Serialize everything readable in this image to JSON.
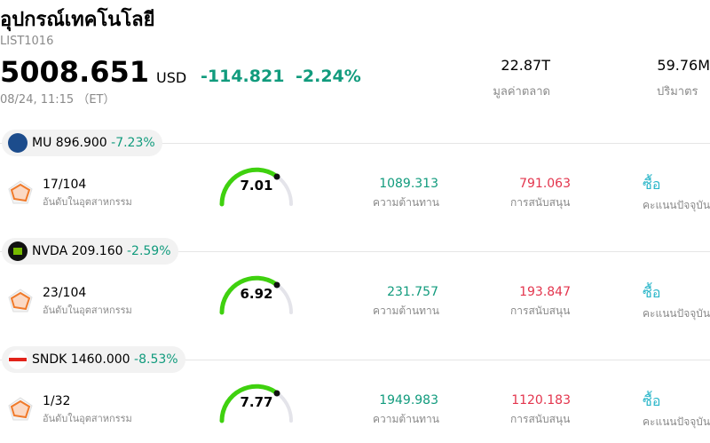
{
  "header": {
    "title": "อุปกรณ์เทคโนโลยี",
    "code": "LIST1016",
    "price": "5008.651",
    "currency": "USD",
    "change": "-114.821",
    "change_pct": "-2.24%",
    "time": "08/24, 11:15 （ET）",
    "market_cap": {
      "value": "22.87T",
      "label": "มูลค่าตลาด"
    },
    "volume": {
      "value": "59.76M",
      "label": "ปริมาตร"
    }
  },
  "stocks": [
    {
      "ticker": "MU",
      "price": "896.900",
      "change_pct": "-7.23%",
      "rank": "17/104",
      "rank_label": "อันดับในอุตสาหกรรม",
      "score": "7.01",
      "resistance": "1089.313",
      "resistance_label": "ความต้านทาน",
      "support": "791.063",
      "support_label": "การสนับสนุน",
      "action": "ซื้อ",
      "action_label": "คะแนนปัจจุบัน"
    },
    {
      "ticker": "NVDA",
      "price": "209.160",
      "change_pct": "-2.59%",
      "rank": "23/104",
      "rank_label": "อันดับในอุตสาหกรรม",
      "score": "6.92",
      "resistance": "231.757",
      "resistance_label": "ความต้านทาน",
      "support": "193.847",
      "support_label": "การสนับสนุน",
      "action": "ซื้อ",
      "action_label": "คะแนนปัจจุบัน"
    },
    {
      "ticker": "SNDK",
      "price": "1460.000",
      "change_pct": "-8.53%",
      "rank": "1/32",
      "rank_label": "อันดับในอุตสาหกรรม",
      "score": "7.77",
      "resistance": "1949.983",
      "resistance_label": "ความต้านทาน",
      "support": "1120.183",
      "support_label": "การสนับสนุน",
      "action": "ซื้อ",
      "action_label": "คะแนนปัจจุบัน"
    }
  ]
}
